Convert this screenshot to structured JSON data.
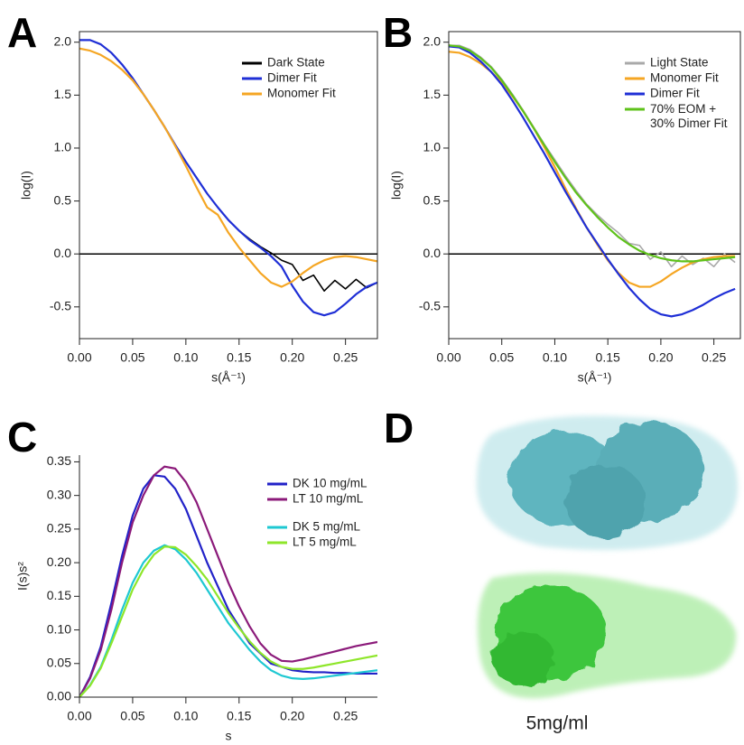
{
  "chart_data": [
    {
      "type": "line",
      "panel": "A",
      "xlabel": "s(Å⁻¹)",
      "ylabel": "log(I)",
      "box": true,
      "zero_line": true,
      "xlim": [
        0,
        0.28
      ],
      "ylim": [
        -0.8,
        2.1
      ],
      "xticks": [
        {
          "value": 0,
          "label": "0.00"
        },
        0.05,
        {
          "value": 0.1,
          "label": "0.10"
        },
        0.15,
        {
          "value": 0.2,
          "label": "0.20"
        },
        0.25
      ],
      "yticks": [
        -0.5,
        {
          "value": 0,
          "label": "0.0"
        },
        0.5,
        {
          "value": 1,
          "label": "1.0"
        },
        1.5,
        {
          "value": 2,
          "label": "2.0"
        }
      ],
      "x": [
        0,
        0.01,
        0.02,
        0.03,
        0.04,
        0.05,
        0.06,
        0.07,
        0.08,
        0.09,
        0.1,
        0.11,
        0.12,
        0.13,
        0.14,
        0.15,
        0.16,
        0.17,
        0.18,
        0.19,
        0.2,
        0.21,
        0.22,
        0.23,
        0.24,
        0.25,
        0.26,
        0.27,
        0.28
      ],
      "series": [
        {
          "name": "Dark State",
          "color": "#000000",
          "values": [
            2.02,
            2.02,
            1.98,
            1.9,
            1.79,
            1.66,
            1.51,
            1.36,
            1.2,
            1.03,
            0.87,
            0.72,
            0.57,
            0.44,
            0.32,
            0.22,
            0.14,
            0.07,
            0.01,
            -0.06,
            -0.1,
            -0.25,
            -0.2,
            -0.35,
            -0.25,
            -0.33,
            -0.24,
            -0.32,
            -0.27
          ]
        },
        {
          "name": "Dimer Fit",
          "color": "#1f2fd6",
          "values": [
            2.02,
            2.02,
            1.98,
            1.9,
            1.79,
            1.66,
            1.51,
            1.36,
            1.2,
            1.03,
            0.87,
            0.72,
            0.57,
            0.44,
            0.32,
            0.22,
            0.13,
            0.06,
            -0.02,
            -0.12,
            -0.3,
            -0.45,
            -0.55,
            -0.58,
            -0.55,
            -0.47,
            -0.38,
            -0.31,
            -0.27
          ]
        },
        {
          "name": "Monomer Fit",
          "color": "#f5a623",
          "values": [
            1.94,
            1.92,
            1.88,
            1.82,
            1.74,
            1.64,
            1.51,
            1.36,
            1.2,
            1.02,
            0.83,
            0.63,
            0.44,
            0.37,
            0.2,
            0.06,
            -0.06,
            -0.18,
            -0.27,
            -0.31,
            -0.26,
            -0.18,
            -0.11,
            -0.06,
            -0.03,
            -0.02,
            -0.03,
            -0.05,
            -0.07
          ]
        }
      ]
    },
    {
      "type": "line",
      "panel": "B",
      "xlabel": "s(Å⁻¹)",
      "ylabel": "log(I)",
      "box": true,
      "zero_line": true,
      "xlim": [
        0,
        0.275
      ],
      "ylim": [
        -0.8,
        2.1
      ],
      "xticks": [
        {
          "value": 0,
          "label": "0.00"
        },
        0.05,
        {
          "value": 0.1,
          "label": "0.10"
        },
        0.15,
        {
          "value": 0.2,
          "label": "0.20"
        },
        0.25
      ],
      "yticks": [
        -0.5,
        {
          "value": 0,
          "label": "0.0"
        },
        0.5,
        {
          "value": 1,
          "label": "1.0"
        },
        1.5,
        {
          "value": 2,
          "label": "2.0"
        }
      ],
      "x": [
        0,
        0.01,
        0.02,
        0.03,
        0.04,
        0.05,
        0.06,
        0.07,
        0.08,
        0.09,
        0.1,
        0.11,
        0.12,
        0.13,
        0.14,
        0.15,
        0.16,
        0.17,
        0.18,
        0.19,
        0.2,
        0.21,
        0.22,
        0.23,
        0.24,
        0.25,
        0.26,
        0.27
      ],
      "series": [
        {
          "name": "Light State",
          "color": "#a9a9a9",
          "values": [
            1.97,
            1.97,
            1.93,
            1.86,
            1.77,
            1.65,
            1.51,
            1.36,
            1.2,
            1.04,
            0.89,
            0.74,
            0.6,
            0.47,
            0.37,
            0.28,
            0.2,
            0.1,
            0.08,
            -0.05,
            0.02,
            -0.12,
            -0.02,
            -0.1,
            -0.04,
            -0.12,
            0.0,
            -0.08
          ]
        },
        {
          "name": "Monomer Fit",
          "color": "#f5a623",
          "values": [
            1.91,
            1.9,
            1.86,
            1.8,
            1.72,
            1.62,
            1.49,
            1.35,
            1.19,
            1.01,
            0.82,
            0.62,
            0.43,
            0.25,
            0.09,
            -0.06,
            -0.18,
            -0.27,
            -0.31,
            -0.31,
            -0.26,
            -0.19,
            -0.13,
            -0.08,
            -0.05,
            -0.03,
            -0.02,
            -0.02
          ]
        },
        {
          "name": "Dimer Fit",
          "color": "#1f2fd6",
          "values": [
            1.96,
            1.95,
            1.9,
            1.82,
            1.72,
            1.6,
            1.45,
            1.29,
            1.12,
            0.95,
            0.77,
            0.59,
            0.42,
            0.25,
            0.1,
            -0.05,
            -0.19,
            -0.32,
            -0.43,
            -0.52,
            -0.57,
            -0.59,
            -0.57,
            -0.53,
            -0.48,
            -0.42,
            -0.37,
            -0.33
          ]
        },
        {
          "name": "70% EOM +\n30% Dimer Fit",
          "color": "#5ec21a",
          "values": [
            1.97,
            1.96,
            1.92,
            1.85,
            1.76,
            1.64,
            1.5,
            1.35,
            1.19,
            1.03,
            0.87,
            0.72,
            0.58,
            0.46,
            0.35,
            0.25,
            0.16,
            0.09,
            0.03,
            -0.01,
            -0.04,
            -0.06,
            -0.07,
            -0.07,
            -0.06,
            -0.05,
            -0.04,
            -0.03
          ]
        }
      ]
    },
    {
      "type": "line",
      "panel": "C",
      "xlabel": "s",
      "ylabel": "I(s)s²",
      "box": false,
      "zero_line": false,
      "xlim": [
        0,
        0.28
      ],
      "ylim": [
        0,
        0.36
      ],
      "xticks": [
        {
          "value": 0,
          "label": "0.00"
        },
        0.05,
        {
          "value": 0.1,
          "label": "0.10"
        },
        0.15,
        {
          "value": 0.2,
          "label": "0.20"
        },
        0.25
      ],
      "yticks": [
        {
          "value": 0,
          "label": "0.00"
        },
        0.05,
        {
          "value": 0.1,
          "label": "0.10"
        },
        0.15,
        {
          "value": 0.2,
          "label": "0.20"
        },
        0.25,
        {
          "value": 0.3,
          "label": "0.30"
        },
        0.35
      ],
      "x": [
        0,
        0.01,
        0.02,
        0.03,
        0.04,
        0.05,
        0.06,
        0.07,
        0.08,
        0.09,
        0.1,
        0.11,
        0.12,
        0.13,
        0.14,
        0.15,
        0.16,
        0.17,
        0.18,
        0.19,
        0.2,
        0.21,
        0.22,
        0.23,
        0.24,
        0.25,
        0.26,
        0.27,
        0.28
      ],
      "series": [
        {
          "name": "DK 10 mg/mL",
          "color": "#2222c8",
          "values": [
            0,
            0.03,
            0.075,
            0.14,
            0.21,
            0.27,
            0.31,
            0.33,
            0.328,
            0.31,
            0.28,
            0.24,
            0.2,
            0.165,
            0.13,
            0.105,
            0.08,
            0.065,
            0.05,
            0.045,
            0.04,
            0.038,
            0.037,
            0.037,
            0.036,
            0.036,
            0.035,
            0.035,
            0.035
          ]
        },
        {
          "name": "LT 10 mg/mL",
          "color": "#8b1a7a",
          "values": [
            0,
            0.028,
            0.07,
            0.13,
            0.2,
            0.26,
            0.3,
            0.33,
            0.343,
            0.34,
            0.32,
            0.29,
            0.25,
            0.21,
            0.17,
            0.135,
            0.105,
            0.08,
            0.063,
            0.054,
            0.053,
            0.056,
            0.06,
            0.064,
            0.068,
            0.072,
            0.076,
            0.079,
            0.082
          ]
        },
        {
          "name": "DK 5 mg/mL",
          "color": "#1ec8d2",
          "values": [
            0,
            0.018,
            0.045,
            0.085,
            0.13,
            0.17,
            0.2,
            0.218,
            0.226,
            0.22,
            0.205,
            0.185,
            0.16,
            0.135,
            0.11,
            0.09,
            0.07,
            0.053,
            0.04,
            0.032,
            0.028,
            0.027,
            0.028,
            0.03,
            0.032,
            0.034,
            0.036,
            0.038,
            0.04
          ]
        },
        {
          "name": "LT 5 mg/mL",
          "color": "#8ee62a",
          "values": [
            0,
            0.017,
            0.043,
            0.08,
            0.12,
            0.16,
            0.19,
            0.212,
            0.224,
            0.223,
            0.212,
            0.195,
            0.175,
            0.15,
            0.125,
            0.103,
            0.083,
            0.066,
            0.053,
            0.045,
            0.042,
            0.042,
            0.044,
            0.047,
            0.05,
            0.053,
            0.056,
            0.059,
            0.062
          ]
        }
      ]
    }
  ],
  "panel_d": {
    "panel": "D",
    "caption": "5mg/ml"
  }
}
